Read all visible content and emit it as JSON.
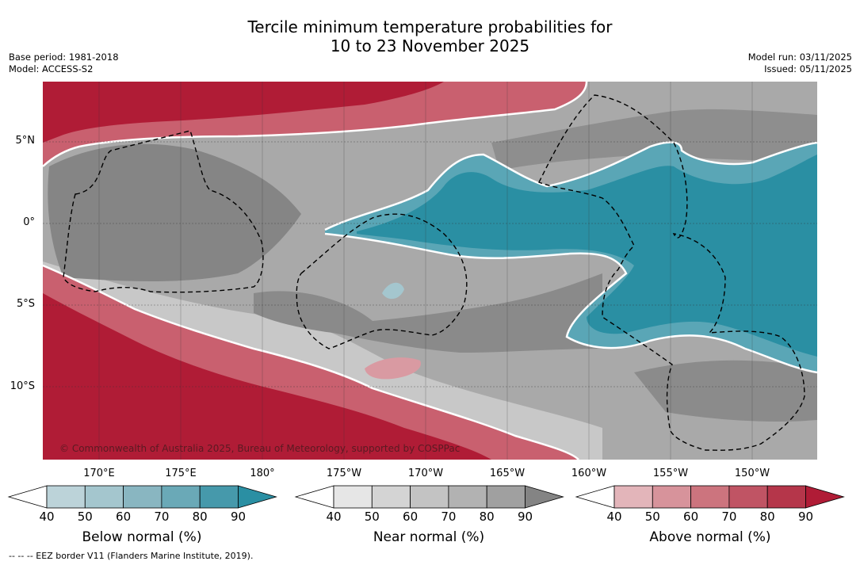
{
  "title": {
    "line1": "Tercile minimum temperature probabilities for",
    "line2": "10 to 23 November 2025"
  },
  "meta_left": {
    "base_period": "Base period: 1981-2018",
    "model": "Model: ACCESS-S2"
  },
  "meta_right": {
    "model_run": "Model run: 03/11/2025",
    "issued": "Issued: 05/11/2025"
  },
  "map": {
    "lat_labels": [
      "5°N",
      "0°",
      "5°S",
      "10°S"
    ],
    "lon_labels": [
      "170°E",
      "175°E",
      "180°",
      "175°W",
      "170°W",
      "165°W",
      "160°W",
      "155°W",
      "150°W"
    ],
    "copyright": "© Commonwealth of Australia 2025, Bureau of Meteorology, supported by COSPPac"
  },
  "colorbars": [
    {
      "title": "Below normal (%)",
      "ticks": [
        "40",
        "50",
        "60",
        "70",
        "80",
        "90"
      ],
      "colors": [
        "#ffffff",
        "#bcd3d9",
        "#a4c6ce",
        "#89b6c1",
        "#6aa9b7",
        "#4699ab",
        "#2a8fa3"
      ]
    },
    {
      "title": "Near normal (%)",
      "ticks": [
        "40",
        "50",
        "60",
        "70",
        "80",
        "90"
      ],
      "colors": [
        "#ffffff",
        "#e6e6e6",
        "#d4d4d4",
        "#c3c3c3",
        "#b2b2b2",
        "#a0a0a0",
        "#848484"
      ]
    },
    {
      "title": "Above normal (%)",
      "ticks": [
        "40",
        "50",
        "60",
        "70",
        "80",
        "90"
      ],
      "colors": [
        "#ffffff",
        "#e3b5ba",
        "#d7939b",
        "#cc747e",
        "#c05464",
        "#b5364a",
        "#b01c36"
      ]
    }
  ],
  "footnote": "--  --  -- EEZ border V11 (Flanders Marine Institute, 2019)."
}
